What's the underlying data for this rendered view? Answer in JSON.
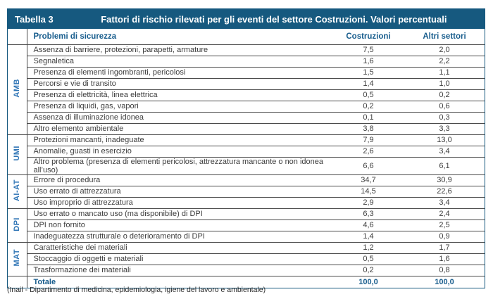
{
  "header": {
    "label": "Tabella 3",
    "title": "Fattori di rischio rilevati per gli eventi del settore Costruzioni. Valori percentuali"
  },
  "columns": {
    "problem": "Problemi di sicurezza",
    "col1": "Costruzioni",
    "col2": "Altri settori"
  },
  "groups": [
    {
      "label": "AMB",
      "rows": [
        {
          "problem": "Assenza di barriere, protezioni, parapetti, armature",
          "costruzioni": "7,5",
          "altri": "2,0"
        },
        {
          "problem": "Segnaletica",
          "costruzioni": "1,6",
          "altri": "2,2"
        },
        {
          "problem": "Presenza di elementi ingombranti, pericolosi",
          "costruzioni": "1,5",
          "altri": "1,1"
        },
        {
          "problem": "Percorsi e vie di transito",
          "costruzioni": "1,4",
          "altri": "1,0"
        },
        {
          "problem": "Presenza di elettricità, linea elettrica",
          "costruzioni": "0,5",
          "altri": "0,2"
        },
        {
          "problem": "Presenza di liquidi, gas, vapori",
          "costruzioni": "0,2",
          "altri": "0,6"
        },
        {
          "problem": "Assenza di illuminazione idonea",
          "costruzioni": "0,1",
          "altri": "0,3"
        },
        {
          "problem": "Altro elemento ambientale",
          "costruzioni": "3,8",
          "altri": "3,3"
        }
      ]
    },
    {
      "label": "UMI",
      "rows": [
        {
          "problem": "Protezioni mancanti, inadeguate",
          "costruzioni": "7,9",
          "altri": "13,0"
        },
        {
          "problem": "Anomalie, guasti in esercizio",
          "costruzioni": "2,6",
          "altri": "3,4"
        },
        {
          "problem": "Altro problema (presenza di elementi pericolosi, attrezzatura mancante o non idonea all’uso)",
          "costruzioni": "6,6",
          "altri": "6,1"
        }
      ]
    },
    {
      "label": "AI-AT",
      "rows": [
        {
          "problem": "Errore di procedura",
          "costruzioni": "34,7",
          "altri": "30,9"
        },
        {
          "problem": "Uso errato di attrezzatura",
          "costruzioni": "14,5",
          "altri": "22,6"
        },
        {
          "problem": "Uso improprio di attrezzatura",
          "costruzioni": "2,9",
          "altri": "3,4"
        }
      ]
    },
    {
      "label": "DPI",
      "rows": [
        {
          "problem": "Uso errato o mancato uso (ma disponibile) di DPI",
          "costruzioni": "6,3",
          "altri": "2,4"
        },
        {
          "problem": "DPI non fornito",
          "costruzioni": "4,6",
          "altri": "2,5"
        },
        {
          "problem": "Inadeguatezza strutturale o deterioramento di DPI",
          "costruzioni": "1,4",
          "altri": "0,9"
        }
      ]
    },
    {
      "label": "MAT",
      "rows": [
        {
          "problem": "Caratteristiche dei materiali",
          "costruzioni": "1,2",
          "altri": "1,7"
        },
        {
          "problem": "Stoccaggio di oggetti e materiali",
          "costruzioni": "0,5",
          "altri": "1,6"
        },
        {
          "problem": "Trasformazione dei materiali",
          "costruzioni": "0,2",
          "altri": "0,8"
        }
      ]
    }
  ],
  "total": {
    "label": "Totale",
    "costruzioni": "100,0",
    "altri": "100,0"
  },
  "footer": "(Inail - Dipartimento di medicina, epidemiologia, igiene del lavoro e ambientale)",
  "colors": {
    "header_bg": "#16597f",
    "header_text": "#ffffff",
    "accent_blue": "#185d8d",
    "group_label_blue": "#2e74b5",
    "row_border": "#4a4a4a"
  }
}
